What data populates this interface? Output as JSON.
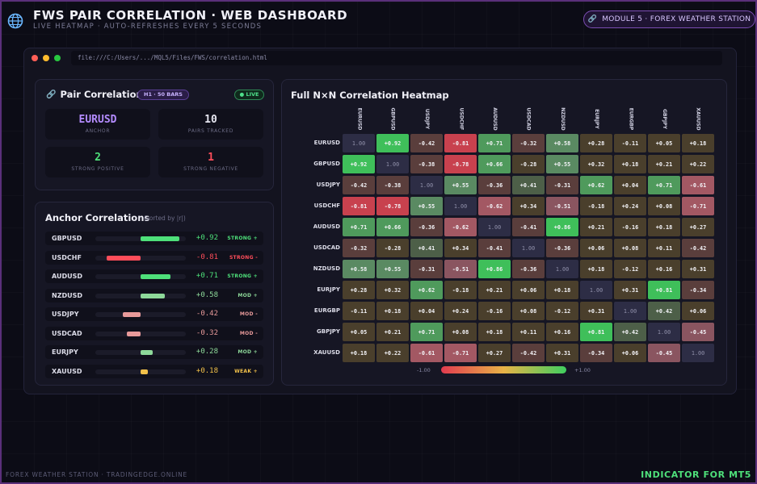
{
  "header": {
    "title": "FWS PAIR CORRELATION · WEB DASHBOARD",
    "subtitle": "LIVE HEATMAP · AUTO-REFRESHES EVERY 5 SECONDS",
    "module_label": "MODULE 5 · FOREX WEATHER STATION"
  },
  "browser": {
    "url": "file:///C:/Users/.../MQL5/Files/FWS/correlation.html"
  },
  "pair_correlation": {
    "title": "Pair Correlation",
    "bars_pill": "H1 · 50 BARS",
    "live_pill": "● LIVE",
    "stats": [
      {
        "value": "EURUSD",
        "label": "ANCHOR",
        "color": "#b48cff"
      },
      {
        "value": "10",
        "label": "PAIRS TRACKED",
        "color": "#e6e6f0"
      },
      {
        "value": "2",
        "label": "STRONG POSITIVE",
        "color": "#4ee07a"
      },
      {
        "value": "1",
        "label": "STRONG NEGATIVE",
        "color": "#ff4d5a"
      }
    ]
  },
  "anchor_correlations": {
    "title": "Anchor Correlations",
    "sort_note": "(sorted by |r|)",
    "rows": [
      {
        "pair": "GBPUSD",
        "value": "+0.92",
        "r": 0.92,
        "tag": "STRONG +",
        "color": "#4ee07a",
        "tag_color": "#4ee07a"
      },
      {
        "pair": "USDCHF",
        "value": "-0.81",
        "r": -0.81,
        "tag": "STRONG -",
        "color": "#ff4d5a",
        "tag_color": "#ff4d5a"
      },
      {
        "pair": "AUDUSD",
        "value": "+0.71",
        "r": 0.71,
        "tag": "STRONG +",
        "color": "#4ee07a",
        "tag_color": "#4ee07a"
      },
      {
        "pair": "NZDUSD",
        "value": "+0.58",
        "r": 0.58,
        "tag": "MOD +",
        "color": "#8ed99a",
        "tag_color": "#8ed99a"
      },
      {
        "pair": "USDJPY",
        "value": "-0.42",
        "r": -0.42,
        "tag": "MOD -",
        "color": "#e89a9a",
        "tag_color": "#e89a9a"
      },
      {
        "pair": "USDCAD",
        "value": "-0.32",
        "r": -0.32,
        "tag": "MOD -",
        "color": "#e89a9a",
        "tag_color": "#e89a9a"
      },
      {
        "pair": "EURJPY",
        "value": "+0.28",
        "r": 0.28,
        "tag": "MOD +",
        "color": "#8ed99a",
        "tag_color": "#8ed99a"
      },
      {
        "pair": "XAUUSD",
        "value": "+0.18",
        "r": 0.18,
        "tag": "WEAK +",
        "color": "#f2c14a",
        "tag_color": "#f2c14a"
      }
    ]
  },
  "heatmap": {
    "title": "Full N×N Correlation Heatmap",
    "pairs": [
      "EURUSD",
      "GBPUSD",
      "USDJPY",
      "USDCHF",
      "AUDUSD",
      "USDCAD",
      "NZDUSD",
      "EURJPY",
      "EURGBP",
      "GBPJPY",
      "XAUUSD"
    ],
    "cells": [
      [
        "1.00",
        "+0.92",
        "-0.42",
        "-0.81",
        "+0.71",
        "-0.32",
        "+0.58",
        "+0.28",
        "-0.11",
        "+0.05",
        "+0.18"
      ],
      [
        "+0.92",
        "1.00",
        "-0.38",
        "-0.78",
        "+0.66",
        "-0.28",
        "+0.55",
        "+0.32",
        "+0.18",
        "+0.21",
        "+0.22"
      ],
      [
        "-0.42",
        "-0.38",
        "1.00",
        "+0.55",
        "-0.36",
        "+0.41",
        "-0.31",
        "+0.62",
        "+0.04",
        "+0.71",
        "-0.61"
      ],
      [
        "-0.81",
        "-0.78",
        "+0.55",
        "1.00",
        "-0.62",
        "+0.34",
        "-0.51",
        "-0.18",
        "+0.24",
        "+0.08",
        "-0.71"
      ],
      [
        "+0.71",
        "+0.66",
        "-0.36",
        "-0.62",
        "1.00",
        "-0.41",
        "+0.86",
        "+0.21",
        "-0.16",
        "+0.18",
        "+0.27"
      ],
      [
        "-0.32",
        "-0.28",
        "+0.41",
        "+0.34",
        "-0.41",
        "1.00",
        "-0.36",
        "+0.06",
        "+0.08",
        "+0.11",
        "-0.42"
      ],
      [
        "+0.58",
        "+0.55",
        "-0.31",
        "-0.51",
        "+0.86",
        "-0.36",
        "1.00",
        "+0.18",
        "-0.12",
        "+0.16",
        "+0.31"
      ],
      [
        "+0.28",
        "+0.32",
        "+0.62",
        "-0.18",
        "+0.21",
        "+0.06",
        "+0.18",
        "1.00",
        "+0.31",
        "+0.81",
        "-0.34"
      ],
      [
        "-0.11",
        "+0.18",
        "+0.04",
        "+0.24",
        "-0.16",
        "+0.08",
        "-0.12",
        "+0.31",
        "1.00",
        "+0.42",
        "+0.06"
      ],
      [
        "+0.05",
        "+0.21",
        "+0.71",
        "+0.08",
        "+0.18",
        "+0.11",
        "+0.16",
        "+0.81",
        "+0.42",
        "1.00",
        "-0.45"
      ],
      [
        "+0.18",
        "+0.22",
        "-0.61",
        "-0.71",
        "+0.27",
        "-0.42",
        "+0.31",
        "-0.34",
        "+0.06",
        "-0.45",
        "1.00"
      ]
    ],
    "legend_min": "-1.00",
    "legend_max": "+1.00"
  },
  "footer": {
    "left": "FOREX WEATHER STATION · TRADINGEDGE.ONLINE",
    "right": "INDICATOR FOR MT5",
    "right_color": "#4ee07a"
  }
}
